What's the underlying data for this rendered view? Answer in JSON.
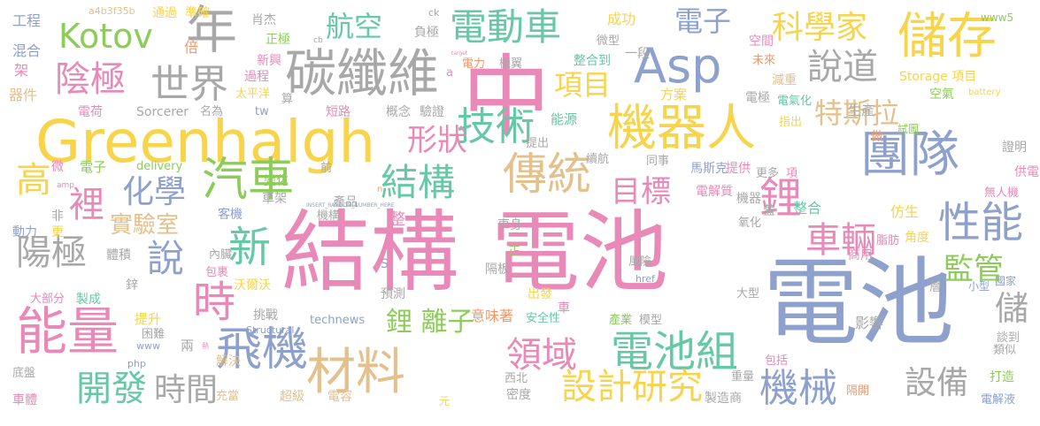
{
  "palette": {
    "pink": "#e889b8",
    "yellow": "#f8d44a",
    "green": "#8ccc58",
    "teal": "#66c8a4",
    "gray": "#a8a8a8",
    "blue": "#8ea0cc",
    "tan": "#e3c08c",
    "orange": "#f29868"
  },
  "words": [
    {
      "text": "結構",
      "color": "#e889b8"
    },
    {
      "text": "電池",
      "color": "#e889b8"
    },
    {
      "text": "電池",
      "color": "#8ea0cc"
    },
    {
      "text": "Greenhalgh",
      "color": "#f8d44a"
    },
    {
      "text": "中",
      "color": "#e889b8"
    },
    {
      "text": "碳纖維",
      "color": "#a8a8a8"
    },
    {
      "text": "電動車",
      "color": "#66c8a4"
    },
    {
      "text": "Asp",
      "color": "#8ea0cc"
    },
    {
      "text": "儲存",
      "color": "#f8d44a"
    },
    {
      "text": "機器人",
      "color": "#f8d44a"
    },
    {
      "text": "團隊",
      "color": "#8ea0cc"
    },
    {
      "text": "年",
      "color": "#a8a8a8"
    },
    {
      "text": "Kotov",
      "color": "#8ccc58"
    },
    {
      "text": "陰極",
      "color": "#e889b8"
    },
    {
      "text": "世界",
      "color": "#a8a8a8"
    },
    {
      "text": "航空",
      "color": "#66c8a4"
    },
    {
      "text": "電子",
      "color": "#8ea0cc"
    },
    {
      "text": "科學家",
      "color": "#f8d44a"
    },
    {
      "text": "說道",
      "color": "#a8a8a8"
    },
    {
      "text": "技術",
      "color": "#66c8a4"
    },
    {
      "text": "項目",
      "color": "#f8d44a"
    },
    {
      "text": "特斯拉",
      "color": "#e3c08c"
    },
    {
      "text": "形狀",
      "color": "#e889b8"
    },
    {
      "text": "汽車",
      "color": "#8ccc58"
    },
    {
      "text": "結構",
      "color": "#66c8a4"
    },
    {
      "text": "傳統",
      "color": "#e3c08c"
    },
    {
      "text": "目標",
      "color": "#e889b8"
    },
    {
      "text": "化學",
      "color": "#8ea0cc"
    },
    {
      "text": "裡",
      "color": "#e889b8"
    },
    {
      "text": "高",
      "color": "#f8d44a"
    },
    {
      "text": "鋰",
      "color": "#e889b8"
    },
    {
      "text": "車輛",
      "color": "#e889b8"
    },
    {
      "text": "性能",
      "color": "#8ea0cc"
    },
    {
      "text": "實驗室",
      "color": "#e3c08c"
    },
    {
      "text": "陽極",
      "color": "#a8a8a8"
    },
    {
      "text": "說",
      "color": "#8ea0cc"
    },
    {
      "text": "新",
      "color": "#66c8a4"
    },
    {
      "text": "時",
      "color": "#e889b8"
    },
    {
      "text": "能量",
      "color": "#e889b8"
    },
    {
      "text": "監管",
      "color": "#8ccc58"
    },
    {
      "text": "儲",
      "color": "#a8a8a8"
    },
    {
      "text": "飛機",
      "color": "#8ea0cc"
    },
    {
      "text": "材料",
      "color": "#e3c08c"
    },
    {
      "text": "鋰 離子",
      "color": "#8ccc58"
    },
    {
      "text": "領域",
      "color": "#e889b8"
    },
    {
      "text": "電池組",
      "color": "#66c8a4"
    },
    {
      "text": "機械",
      "color": "#8ea0cc"
    },
    {
      "text": "設備",
      "color": "#a8a8a8"
    },
    {
      "text": "開發",
      "color": "#66c8a4"
    },
    {
      "text": "時間",
      "color": "#a8a8a8"
    },
    {
      "text": "設計研究",
      "color": "#f8d44a"
    },
    {
      "text": "工程",
      "color": "#8ea0cc"
    },
    {
      "text": "a4b3f35b",
      "color": "#e3c08c"
    },
    {
      "text": "通過",
      "color": "#f8d44a"
    },
    {
      "text": "準確",
      "color": "#f8d44a"
    },
    {
      "text": "肖杰",
      "color": "#a8a8a8"
    },
    {
      "text": "ck",
      "color": "#a8a8a8"
    },
    {
      "text": "成功",
      "color": "#f8d44a"
    },
    {
      "text": "www5",
      "color": "#8ccc58"
    },
    {
      "text": "混合",
      "color": "#8ea0cc"
    },
    {
      "text": "倍",
      "color": "#f29868"
    },
    {
      "text": "正極",
      "color": "#8ccc58"
    },
    {
      "text": "cb",
      "color": "#a8a8a8"
    },
    {
      "text": "負極",
      "color": "#a8a8a8"
    },
    {
      "text": "微型",
      "color": "#a8a8a8"
    },
    {
      "text": "空間",
      "color": "#e889b8"
    },
    {
      "text": "架",
      "color": "#e889b8"
    },
    {
      "text": "新興",
      "color": "#e889b8"
    },
    {
      "text": "一段",
      "color": "#a8a8a8"
    },
    {
      "text": "整合到",
      "color": "#66c8a4"
    },
    {
      "text": "未來",
      "color": "#f29868"
    },
    {
      "text": "電力",
      "color": "#f29868"
    },
    {
      "text": "機翼",
      "color": "#a8a8a8"
    },
    {
      "text": "器件",
      "color": "#e3c08c"
    },
    {
      "text": "過程",
      "color": "#e889b8"
    },
    {
      "text": "太平洋",
      "color": "#f8d44a"
    },
    {
      "text": "方案",
      "color": "#f8d44a"
    },
    {
      "text": "減重",
      "color": "#e3c08c"
    },
    {
      "text": "空氣",
      "color": "#8ccc58"
    },
    {
      "text": "Storage 項目",
      "color": "#f8d44a"
    },
    {
      "text": "battery",
      "color": "#f8d44a"
    },
    {
      "text": "電荷",
      "color": "#e889b8"
    },
    {
      "text": "名為",
      "color": "#a8a8a8"
    },
    {
      "text": "tw",
      "color": "#8ea0cc"
    },
    {
      "text": "算",
      "color": "#a8a8a8"
    },
    {
      "text": "電極",
      "color": "#a8a8a8"
    },
    {
      "text": "電氣化",
      "color": "#66c8a4"
    },
    {
      "text": "Sorcerer",
      "color": "#a8a8a8"
    },
    {
      "text": "短路",
      "color": "#e889b8"
    },
    {
      "text": "概念",
      "color": "#a8a8a8"
    },
    {
      "text": "驗證",
      "color": "#a8a8a8"
    },
    {
      "text": "能源",
      "color": "#66c8a4"
    },
    {
      "text": "生產",
      "color": "#a8a8a8"
    },
    {
      "text": "指出",
      "color": "#f8d44a"
    },
    {
      "text": "試圖",
      "color": "#8ccc58"
    },
    {
      "text": "做",
      "color": "#f29868"
    },
    {
      "text": "提出",
      "color": "#a8a8a8"
    },
    {
      "text": "證明",
      "color": "#a8a8a8"
    },
    {
      "text": "微",
      "color": "#e889b8"
    },
    {
      "text": "電子",
      "color": "#8ccc58"
    },
    {
      "text": "delivery",
      "color": "#8ccc58"
    },
    {
      "text": "前",
      "color": "#a8a8a8"
    },
    {
      "text": "續航",
      "color": "#a8a8a8"
    },
    {
      "text": "同事",
      "color": "#a8a8a8"
    },
    {
      "text": "馬斯克",
      "color": "#8ea0cc"
    },
    {
      "text": "提供",
      "color": "#e889b8"
    },
    {
      "text": "更多",
      "color": "#a8a8a8"
    },
    {
      "text": "項",
      "color": "#e889b8"
    },
    {
      "text": "供電",
      "color": "#e889b8"
    },
    {
      "text": "變化",
      "color": "#8ccc58"
    },
    {
      "text": "車架",
      "color": "#a8a8a8"
    },
    {
      "text": "amp",
      "color": "#e889b8"
    },
    {
      "text": "電解質",
      "color": "#e889b8"
    },
    {
      "text": "無人機",
      "color": "#e889b8"
    },
    {
      "text": "機器",
      "color": "#a8a8a8"
    },
    {
      "text": "蓋",
      "color": "#a8a8a8"
    },
    {
      "text": "整合",
      "color": "#66c8a4"
    },
    {
      "text": "仿生",
      "color": "#f8d44a"
    },
    {
      "text": "產品",
      "color": "#a8a8a8"
    },
    {
      "text": "車身",
      "color": "#a8a8a8"
    },
    {
      "text": "客機",
      "color": "#8ea0cc"
    },
    {
      "text": "機構",
      "color": "#a8a8a8"
    },
    {
      "text": "整",
      "color": "#e889b8"
    },
    {
      "text": "非",
      "color": "#a8a8a8"
    },
    {
      "text": "氧化",
      "color": "#a8a8a8"
    },
    {
      "text": "動力",
      "color": "#8ea0cc"
    },
    {
      "text": "更",
      "color": "#f8d44a"
    },
    {
      "text": "體積",
      "color": "#a8a8a8"
    },
    {
      "text": "內臟",
      "color": "#a8a8a8"
    },
    {
      "text": "脂肪",
      "color": "#e889b8"
    },
    {
      "text": "角度",
      "color": "#f8d44a"
    },
    {
      "text": "商用",
      "color": "#e889b8"
    },
    {
      "text": "正",
      "color": "#8ccc58"
    },
    {
      "text": "隔板",
      "color": "#a8a8a8"
    },
    {
      "text": "風險",
      "color": "#a8a8a8"
    },
    {
      "text": "包裹",
      "color": "#e889b8"
    },
    {
      "text": "鋅",
      "color": "#a8a8a8"
    },
    {
      "text": "沃爾沃",
      "color": "#f8d44a"
    },
    {
      "text": "S",
      "color": "#8ea0cc"
    },
    {
      "text": "href",
      "color": "#8ea0cc"
    },
    {
      "text": "層",
      "color": "#a8a8a8"
    },
    {
      "text": "小型",
      "color": "#8ea0cc"
    },
    {
      "text": "國家",
      "color": "#8ea0cc"
    },
    {
      "text": "大部分",
      "color": "#e889b8"
    },
    {
      "text": "製成",
      "color": "#66c8a4"
    },
    {
      "text": "預測",
      "color": "#a8a8a8"
    },
    {
      "text": "出發",
      "color": "#f8d44a"
    },
    {
      "text": "大型",
      "color": "#a8a8a8"
    },
    {
      "text": "提升",
      "color": "#f8d44a"
    },
    {
      "text": "挑戰",
      "color": "#a8a8a8"
    },
    {
      "text": "意味著",
      "color": "#f29868"
    },
    {
      "text": "車",
      "color": "#e889b8"
    },
    {
      "text": "困難",
      "color": "#a8a8a8"
    },
    {
      "text": "安全性",
      "color": "#66c8a4"
    },
    {
      "text": "technews",
      "color": "#8ea0cc"
    },
    {
      "text": "產業",
      "color": "#8ccc58"
    },
    {
      "text": "模型",
      "color": "#a8a8a8"
    },
    {
      "text": "影響",
      "color": "#a8a8a8"
    },
    {
      "text": "php",
      "color": "#8ea0cc"
    },
    {
      "text": "www",
      "color": "#8ea0cc"
    },
    {
      "text": "Structural",
      "color": "#8ea0cc"
    },
    {
      "text": "談到",
      "color": "#a8a8a8"
    },
    {
      "text": "兩",
      "color": "#a8a8a8"
    },
    {
      "text": "類似",
      "color": "#a8a8a8"
    },
    {
      "text": "解決",
      "color": "#e3c08c"
    },
    {
      "text": "包括",
      "color": "#e889b8"
    },
    {
      "text": "底盤",
      "color": "#a8a8a8"
    },
    {
      "text": "西北",
      "color": "#a8a8a8"
    },
    {
      "text": "重量",
      "color": "#a8a8a8"
    },
    {
      "text": "打造",
      "color": "#8ccc58"
    },
    {
      "text": "充當",
      "color": "#e3c08c"
    },
    {
      "text": "超級",
      "color": "#e3c08c"
    },
    {
      "text": "電容",
      "color": "#e3c08c"
    },
    {
      "text": "密度",
      "color": "#a8a8a8"
    },
    {
      "text": "製造商",
      "color": "#a8a8a8"
    },
    {
      "text": "隔開",
      "color": "#f29868"
    },
    {
      "text": "車體",
      "color": "#e889b8"
    },
    {
      "text": "元",
      "color": "#f8d44a"
    },
    {
      "text": "電解液",
      "color": "#8ea0cc"
    },
    {
      "text": "target",
      "color": "#e889b8"
    },
    {
      "text": "INSERT_RANDOM_NUMBER_HERE",
      "color": "#8ea0cc"
    },
    {
      "text": "a",
      "color": "#e889b8"
    },
    {
      "text": "n",
      "color": "#f29868"
    },
    {
      "text": "熱",
      "color": "#e889b8"
    }
  ]
}
